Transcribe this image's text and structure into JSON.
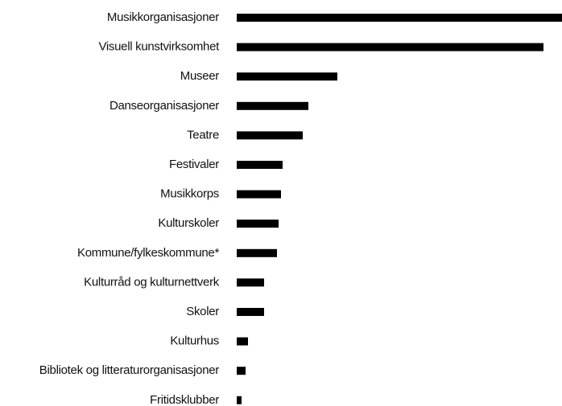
{
  "chart_data": {
    "type": "barh",
    "categories": [
      "Musikkorganisasjoner",
      "Visuell kunstvirksomhet",
      "Museer",
      "Danseorganisasjoner",
      "Teatre",
      "Festivaler",
      "Musikkorps",
      "Kulturskoler",
      "Kommune/fylkeskommune*",
      "Kulturråd og kulturnettverk",
      "Skoler",
      "Kulturhus",
      "Bibliotek og litteraturorganisasjoner",
      "Fritidsklubber"
    ],
    "values": [
      404,
      381,
      125,
      89,
      82,
      57,
      55,
      52,
      50,
      34,
      34,
      14,
      11,
      6
    ],
    "color": "#000000"
  }
}
